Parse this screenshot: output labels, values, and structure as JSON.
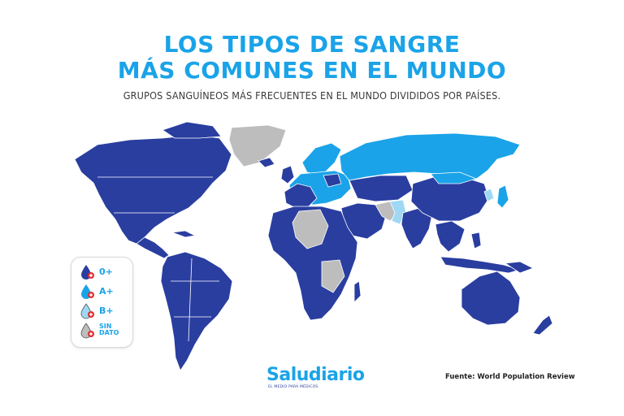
{
  "title_line1": "LOS TIPOS DE SANGRE",
  "title_line2": "MÁS COMUNES EN EL MUNDO",
  "subtitle": "GRUPOS SANGUÍNEOS MÁS FRECUENTES EN EL MUNDO DIVIDIDOS POR PAÍSES.",
  "legend": [
    {
      "label": "0+",
      "color": "#2a3ea0"
    },
    {
      "label": "A+",
      "color": "#1aa3e8"
    },
    {
      "label": "B+",
      "color": "#9ed8f5"
    },
    {
      "label": "SIN DATO",
      "color": "#bdbdbd"
    }
  ],
  "logo": {
    "name": "Saludiario",
    "tagline": "EL MEDIO PARA MÉDICOS"
  },
  "source": "Fuente: World Population Review",
  "colors": {
    "o_pos": "#2a3ea0",
    "a_pos": "#1aa3e8",
    "b_pos": "#9ed8f5",
    "no_data": "#bdbdbd",
    "accent": "#1aa3e8"
  }
}
